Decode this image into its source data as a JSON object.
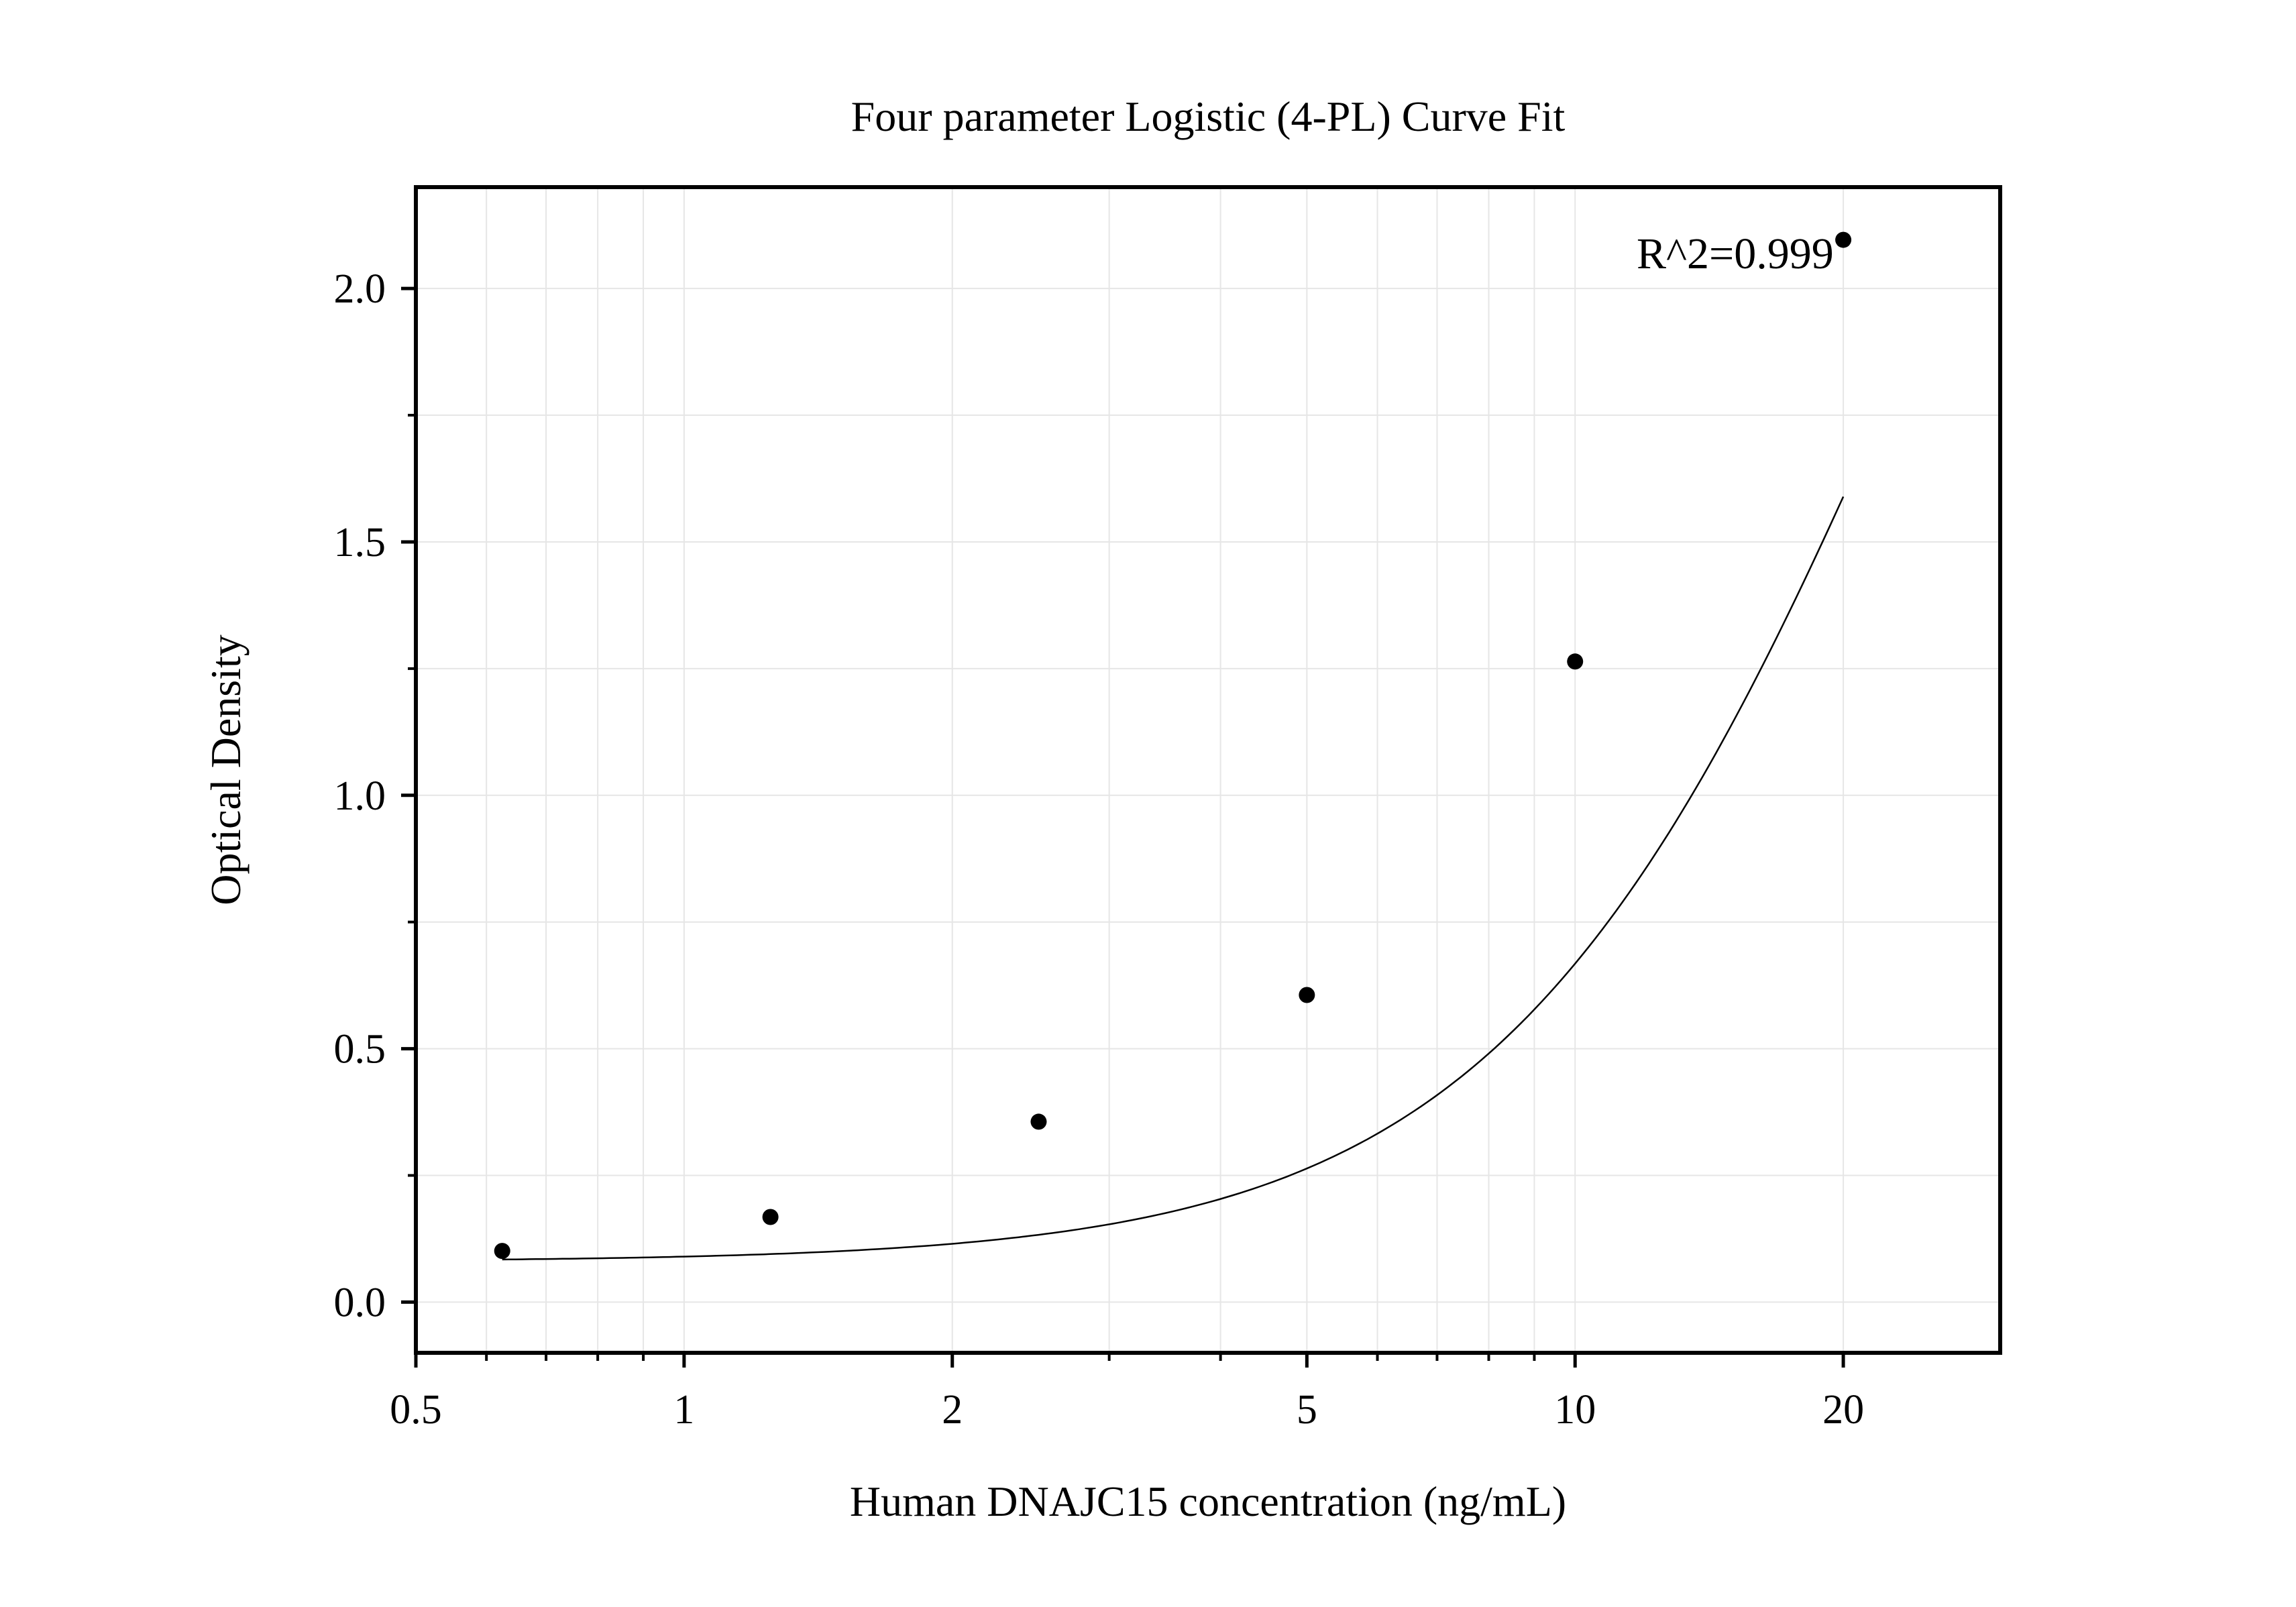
{
  "chart_data": {
    "type": "scatter",
    "title": "Four parameter Logistic (4-PL) Curve Fit",
    "xlabel": "Human DNAJC15 concentration (ng/mL)",
    "ylabel": "Optical Density",
    "x_scale": "log",
    "xlim": [
      0.5,
      30
    ],
    "ylim": [
      -0.1,
      2.2
    ],
    "x_ticks": [
      0.5,
      1,
      2,
      5,
      10,
      20
    ],
    "x_tick_labels": [
      "0.5",
      "1",
      "2",
      "5",
      "10",
      "20"
    ],
    "y_ticks": [
      0.0,
      0.5,
      1.0,
      1.5,
      2.0
    ],
    "y_tick_labels": [
      "0.0",
      "0.5",
      "1.0",
      "1.5",
      "2.0"
    ],
    "grid": true,
    "annotation": "R^2=0.999",
    "series": [
      {
        "x": [
          0.625,
          1.25,
          2.5,
          5,
          10,
          20
        ],
        "y": [
          0.101,
          0.168,
          0.356,
          0.606,
          1.264,
          2.096
        ]
      }
    ],
    "fit_curve": {
      "type": "4-PL",
      "A": 0.08,
      "B": 1.85,
      "C": 25,
      "D": 3.87
    },
    "colors": {
      "points": "#000000",
      "curve": "#000000",
      "grid": "#e6e6e6",
      "frame": "#000000"
    }
  }
}
